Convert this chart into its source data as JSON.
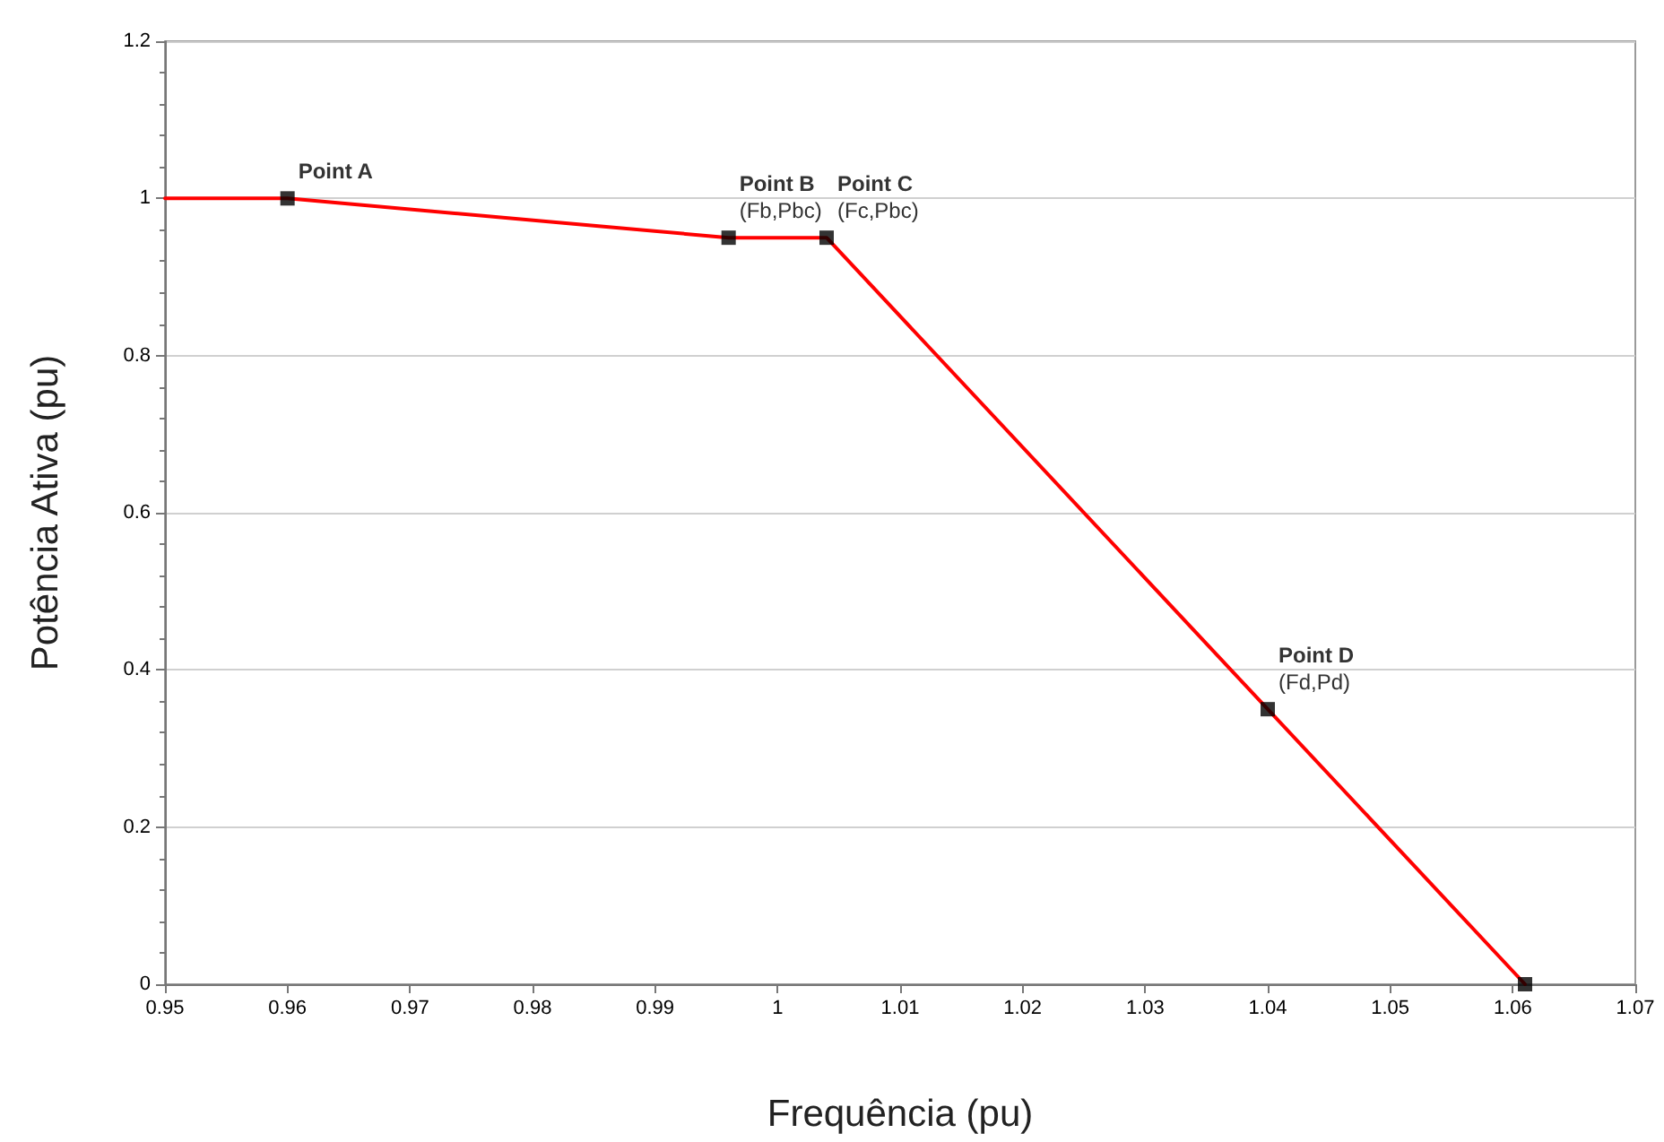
{
  "chart_data": {
    "type": "line",
    "xlabel": "Frequência (pu)",
    "ylabel": "Potência Ativa (pu)",
    "series": [
      {
        "color": "#ff0000",
        "marker": "none",
        "x": [
          0.95,
          0.96,
          0.996,
          1.004,
          1.04,
          1.061
        ],
        "values": [
          1,
          1,
          0.95,
          0.95,
          0.35,
          0
        ]
      },
      {
        "type": "scatter",
        "color": "#000000",
        "marker": "square",
        "x": [
          0.96,
          0.996,
          1.004,
          1.04,
          1.061
        ],
        "values": [
          1,
          0.95,
          0.95,
          0.35,
          0
        ]
      }
    ],
    "xlim": [
      0.95,
      1.07
    ],
    "xticks": [
      0.95,
      0.96,
      0.97,
      0.98,
      0.99,
      1,
      1.01,
      1.02,
      1.03,
      1.04,
      1.05,
      1.06,
      1.07
    ],
    "ylim": [
      0,
      1.2
    ],
    "yticks": [
      0,
      0.2,
      0.4,
      0.6,
      0.8,
      1,
      1.2
    ],
    "grid": "y",
    "annotations": [
      {
        "text": "Point A",
        "x": 0.96,
        "y": 1
      },
      {
        "text": "Point B\n(Fb,Pbc)",
        "x": 0.996,
        "y": 0.95
      },
      {
        "text": "Point C\n(Fc,Pbc)",
        "x": 1.004,
        "y": 0.95
      },
      {
        "text": "Point D\n(Fd,Pd)",
        "x": 1.04,
        "y": 0.35
      }
    ]
  }
}
